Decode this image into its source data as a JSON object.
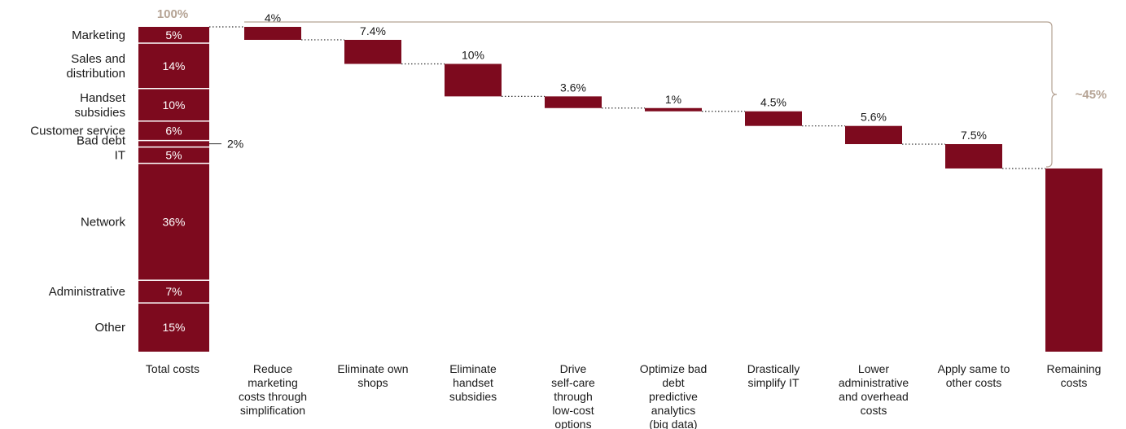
{
  "chart_data": {
    "type": "waterfall",
    "colors": {
      "bar": "#7d0a1e",
      "connector": "#333333",
      "accent": "#b5a394"
    },
    "total_label": "100%",
    "breakdown": [
      {
        "name": "Marketing",
        "value": 5,
        "label": "5%"
      },
      {
        "name": "Sales and distribution",
        "value": 14,
        "label": "14%"
      },
      {
        "name": "Handset subsidies",
        "value": 10,
        "label": "10%"
      },
      {
        "name": "Customer service",
        "value": 6,
        "label": "6%"
      },
      {
        "name": "Bad debt",
        "value": 2,
        "label": "2%"
      },
      {
        "name": "IT",
        "value": 5,
        "label": "5%"
      },
      {
        "name": "Network",
        "value": 36,
        "label": "36%"
      },
      {
        "name": "Administrative",
        "value": 7,
        "label": "7%"
      },
      {
        "name": "Other",
        "value": 15,
        "label": "15%"
      }
    ],
    "steps": [
      {
        "category": "Reduce marketing costs through simplification",
        "value": 4,
        "label": "4%"
      },
      {
        "category": "Eliminate own shops",
        "value": 7.4,
        "label": "7.4%"
      },
      {
        "category": "Eliminate handset subsidies",
        "value": 10,
        "label": "10%"
      },
      {
        "category": "Drive self-care through low-cost options",
        "value": 3.6,
        "label": "3.6%"
      },
      {
        "category": "Optimize bad debt predictive analytics (big data)",
        "value": 1,
        "label": "1%"
      },
      {
        "category": "Drastically simplify IT",
        "value": 4.5,
        "label": "4.5%"
      },
      {
        "category": "Lower administrative and overhead costs",
        "value": 5.6,
        "label": "5.6%"
      },
      {
        "category": "Apply same to other costs",
        "value": 7.5,
        "label": "7.5%"
      }
    ],
    "first_category": "Total costs",
    "last_category": "Remaining costs",
    "savings_label": "~45%"
  }
}
